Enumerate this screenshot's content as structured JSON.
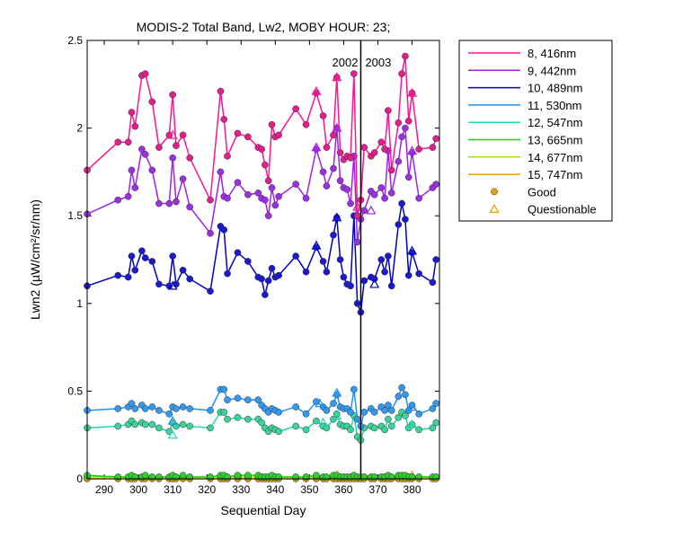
{
  "chart_data": {
    "type": "line",
    "title": "MODIS-2 Total Band, Lw2, MOBY HOUR: 23;",
    "xlabel": "Sequential Day",
    "ylabel": "Lwn2 (µW/cm²/sr/nm)",
    "xlim": [
      285,
      388
    ],
    "ylim": [
      0,
      2.5
    ],
    "xticks": [
      290,
      300,
      310,
      320,
      330,
      340,
      350,
      360,
      370,
      380
    ],
    "yticks": [
      0,
      0.5,
      1,
      1.5,
      2,
      2.5
    ],
    "ytick_labels": [
      "0",
      "0.5",
      "1",
      "1.5",
      "2",
      "2.5"
    ],
    "year_boundary": {
      "x": 365,
      "label_left": "2002",
      "label_right": "2003"
    },
    "x": [
      285,
      294,
      297,
      298,
      299,
      301,
      302,
      304,
      306,
      309,
      310,
      311,
      313,
      315,
      321,
      324,
      325,
      326,
      329,
      332,
      335,
      336,
      337,
      338,
      339,
      340,
      341,
      346,
      349,
      352,
      354,
      355,
      357,
      358,
      359,
      360,
      361,
      362,
      363,
      364,
      365,
      366,
      368,
      369,
      371,
      372,
      373,
      374,
      376,
      377,
      378,
      379,
      380,
      382,
      386,
      387
    ],
    "series": [
      {
        "name": "8, 416nm",
        "color": "#ff1493",
        "marker_color": "#e01e8c",
        "values": [
          1.76,
          1.92,
          1.92,
          2.09,
          2.01,
          2.3,
          2.31,
          2.15,
          1.89,
          1.96,
          2.19,
          1.9,
          1.96,
          1.83,
          1.59,
          2.21,
          2.05,
          1.84,
          1.97,
          1.95,
          1.89,
          1.88,
          1.79,
          1.7,
          2.02,
          1.95,
          1.96,
          2.11,
          2.02,
          2.2,
          2.07,
          1.89,
          1.96,
          2.29,
          1.86,
          1.82,
          1.84,
          1.83,
          2.31,
          1.5,
          1.59,
          1.89,
          1.84,
          1.86,
          1.92,
          1.88,
          2.1,
          1.76,
          2.03,
          2.31,
          2.41,
          2.04,
          2.2,
          1.88,
          1.89,
          1.94
        ],
        "questionable": [
          {
            "x": 310,
            "y": 1.96
          },
          {
            "x": 352,
            "y": 2.21
          },
          {
            "x": 358,
            "y": 2.29
          },
          {
            "x": 364,
            "y": 1.55
          },
          {
            "x": 380,
            "y": 2.2
          }
        ]
      },
      {
        "name": "9, 442nm",
        "color": "#a020f0",
        "marker_color": "#9b30e0",
        "values": [
          1.51,
          1.59,
          1.61,
          1.76,
          1.66,
          1.88,
          1.85,
          1.76,
          1.57,
          1.57,
          1.83,
          1.58,
          1.71,
          1.55,
          1.4,
          1.75,
          1.61,
          1.6,
          1.69,
          1.62,
          1.63,
          1.6,
          1.59,
          1.5,
          1.66,
          1.56,
          1.61,
          1.68,
          1.6,
          1.88,
          1.75,
          1.67,
          1.77,
          2.0,
          1.7,
          1.66,
          1.65,
          1.57,
          1.84,
          1.35,
          1.48,
          1.53,
          1.64,
          1.62,
          1.66,
          1.6,
          1.87,
          1.63,
          1.81,
          1.95,
          2.0,
          1.72,
          1.86,
          1.6,
          1.66,
          1.68
        ],
        "questionable": [
          {
            "x": 352,
            "y": 1.89
          },
          {
            "x": 358,
            "y": 2.0
          },
          {
            "x": 368,
            "y": 1.53
          },
          {
            "x": 380,
            "y": 1.87
          }
        ]
      },
      {
        "name": "10, 489nm",
        "color": "#0000c8",
        "marker_color": "#1a1acc",
        "values": [
          1.1,
          1.16,
          1.15,
          1.27,
          1.19,
          1.3,
          1.26,
          1.24,
          1.11,
          1.1,
          1.27,
          1.11,
          1.19,
          1.14,
          1.07,
          1.44,
          1.42,
          1.17,
          1.29,
          1.24,
          1.15,
          1.14,
          1.05,
          1.13,
          1.2,
          1.15,
          1.16,
          1.27,
          1.18,
          1.32,
          1.24,
          1.18,
          1.39,
          1.49,
          1.25,
          1.15,
          1.11,
          1.1,
          1.5,
          1.0,
          0.95,
          1.13,
          1.15,
          1.14,
          1.25,
          1.18,
          1.27,
          1.1,
          1.45,
          1.57,
          1.48,
          1.16,
          1.29,
          1.17,
          1.12,
          1.25
        ],
        "questionable": [
          {
            "x": 310,
            "y": 1.1
          },
          {
            "x": 352,
            "y": 1.33
          },
          {
            "x": 358,
            "y": 1.49
          },
          {
            "x": 369,
            "y": 1.11
          },
          {
            "x": 380,
            "y": 1.3
          }
        ]
      },
      {
        "name": "11, 530nm",
        "color": "#1e90ff",
        "marker_color": "#3399ee",
        "values": [
          0.39,
          0.4,
          0.41,
          0.43,
          0.4,
          0.42,
          0.4,
          0.41,
          0.39,
          0.37,
          0.41,
          0.4,
          0.41,
          0.4,
          0.39,
          0.51,
          0.51,
          0.45,
          0.46,
          0.45,
          0.45,
          0.42,
          0.4,
          0.38,
          0.4,
          0.39,
          0.38,
          0.41,
          0.37,
          0.44,
          0.41,
          0.39,
          0.43,
          0.48,
          0.41,
          0.4,
          0.4,
          0.38,
          0.51,
          0.34,
          0.3,
          0.38,
          0.4,
          0.38,
          0.41,
          0.39,
          0.42,
          0.39,
          0.47,
          0.52,
          0.48,
          0.39,
          0.42,
          0.37,
          0.4,
          0.43
        ],
        "questionable": [
          {
            "x": 310,
            "y": 0.33
          },
          {
            "x": 353,
            "y": 0.43
          },
          {
            "x": 358,
            "y": 0.49
          },
          {
            "x": 380,
            "y": 0.41
          }
        ]
      },
      {
        "name": "12, 547nm",
        "color": "#20d8b0",
        "marker_color": "#3cd29a",
        "values": [
          0.29,
          0.3,
          0.31,
          0.33,
          0.31,
          0.32,
          0.31,
          0.31,
          0.29,
          0.27,
          0.32,
          0.3,
          0.31,
          0.3,
          0.29,
          0.38,
          0.38,
          0.34,
          0.35,
          0.34,
          0.34,
          0.32,
          0.29,
          0.27,
          0.29,
          0.28,
          0.27,
          0.3,
          0.28,
          0.33,
          0.3,
          0.29,
          0.34,
          0.37,
          0.31,
          0.3,
          0.3,
          0.28,
          0.36,
          0.24,
          0.22,
          0.29,
          0.3,
          0.29,
          0.3,
          0.28,
          0.34,
          0.3,
          0.35,
          0.38,
          0.36,
          0.29,
          0.31,
          0.28,
          0.29,
          0.32
        ],
        "questionable": [
          {
            "x": 310,
            "y": 0.25
          },
          {
            "x": 354,
            "y": 0.32
          },
          {
            "x": 358,
            "y": 0.36
          },
          {
            "x": 380,
            "y": 0.31
          }
        ]
      },
      {
        "name": "13, 665nm",
        "color": "#00dd00",
        "marker_color": "#33cc33",
        "values": [
          0.02,
          0.01,
          0.01,
          0.02,
          0.01,
          0.01,
          0.02,
          0.01,
          0.01,
          0.01,
          0.02,
          0.01,
          0.02,
          0.01,
          0.01,
          0.02,
          0.02,
          0.01,
          0.02,
          0.02,
          0.02,
          0.01,
          0.01,
          0.01,
          0.02,
          0.01,
          0.01,
          0.01,
          0.01,
          0.02,
          0.01,
          0.01,
          0.02,
          0.02,
          0.01,
          0.01,
          0.01,
          0.01,
          0.02,
          0.01,
          0.01,
          0.01,
          0.01,
          0.01,
          0.01,
          0.01,
          0.02,
          0.01,
          0.02,
          0.02,
          0.02,
          0.01,
          0.01,
          0.01,
          0.01,
          0.01
        ],
        "questionable": []
      },
      {
        "name": "14, 677nm",
        "color": "#a0e600",
        "marker_color": "#a8d820",
        "values": [
          0.01,
          0.01,
          0.01,
          0.01,
          0.01,
          0.01,
          0.01,
          0.01,
          0.01,
          0.01,
          0.01,
          0.01,
          0.01,
          0.01,
          0.01,
          0.01,
          0.01,
          0.01,
          0.01,
          0.01,
          0.01,
          0.01,
          0.01,
          0.01,
          0.01,
          0.01,
          0.01,
          0.01,
          0.01,
          0.01,
          0.01,
          0.01,
          0.01,
          0.01,
          0.01,
          0.01,
          0.01,
          0.01,
          0.01,
          0.01,
          0.01,
          0.01,
          0.01,
          0.01,
          0.01,
          0.01,
          0.01,
          0.01,
          0.01,
          0.01,
          0.01,
          0.01,
          0.01,
          0.01,
          0.01,
          0.01
        ],
        "questionable": []
      },
      {
        "name": "15, 747nm",
        "color": "#f0a000",
        "marker_color": "#e8a010",
        "values": [
          0.0,
          0.0,
          0.0,
          0.0,
          0.0,
          0.0,
          0.0,
          0.0,
          0.0,
          0.0,
          0.0,
          0.0,
          0.0,
          0.0,
          0.0,
          0.0,
          0.0,
          0.0,
          0.0,
          0.0,
          0.0,
          0.0,
          0.0,
          0.0,
          0.0,
          0.0,
          0.0,
          0.0,
          0.0,
          0.0,
          0.0,
          0.0,
          0.0,
          0.0,
          0.0,
          0.0,
          0.0,
          0.0,
          0.0,
          0.0,
          0.0,
          0.0,
          0.0,
          0.0,
          0.0,
          0.0,
          0.0,
          0.0,
          0.0,
          0.0,
          0.0,
          0.0,
          0.0,
          0.0,
          0.0,
          0.0
        ],
        "questionable": [
          {
            "x": 358,
            "y": 0.02
          },
          {
            "x": 380,
            "y": 0.02
          }
        ]
      }
    ],
    "legend": {
      "position": "outside-right",
      "marker_entries": [
        {
          "label": "Good",
          "marker": "circle",
          "color": "#f0a000"
        },
        {
          "label": "Questionable",
          "marker": "triangle",
          "color": "#f0a000"
        }
      ]
    }
  }
}
